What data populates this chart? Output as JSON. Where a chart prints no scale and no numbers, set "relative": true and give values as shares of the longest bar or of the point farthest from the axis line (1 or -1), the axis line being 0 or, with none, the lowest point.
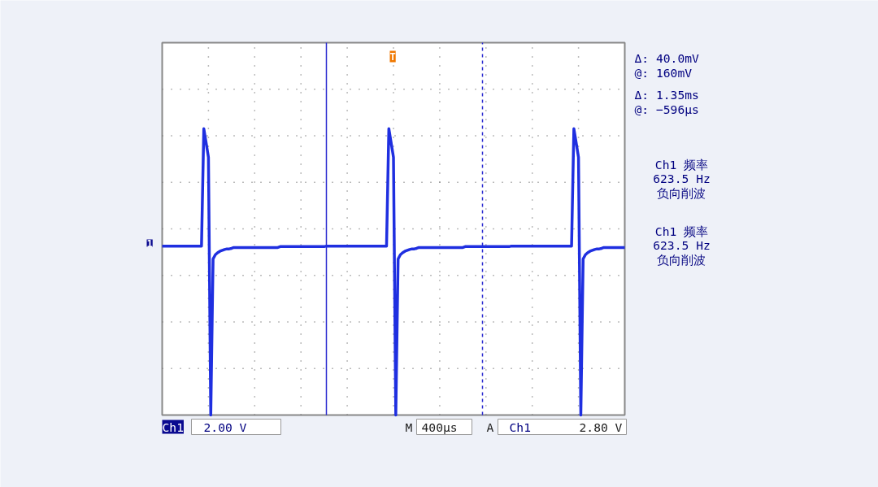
{
  "chart_data": {
    "type": "line",
    "relative": true,
    "categories": [
      null,
      null,
      null,
      null,
      null,
      null,
      null,
      null,
      null,
      null,
      null,
      null,
      null,
      null,
      null,
      null,
      null,
      null,
      null,
      null,
      null,
      null,
      null,
      null,
      null,
      null,
      null,
      null,
      null,
      null,
      null,
      null,
      null,
      null,
      null,
      null,
      null,
      null,
      null,
      null,
      null,
      null,
      null,
      null,
      null,
      null,
      null,
      null,
      null,
      null,
      null,
      null,
      null,
      null,
      null,
      null,
      null,
      null,
      null,
      null,
      null,
      null,
      null,
      null,
      null,
      null,
      null,
      null,
      null,
      null,
      null,
      null,
      null,
      null,
      null,
      null,
      null,
      null,
      null,
      null,
      null,
      null,
      null,
      null,
      null,
      null,
      null,
      null,
      null,
      null,
      null,
      null,
      null,
      null,
      null,
      null,
      null,
      null,
      null,
      null,
      null,
      null,
      null,
      null,
      null,
      null,
      null,
      null,
      null,
      null,
      null,
      null,
      null,
      null,
      null,
      null,
      null,
      null,
      null,
      null,
      null,
      null,
      null,
      null,
      null,
      null,
      null,
      null,
      null,
      null,
      null,
      null,
      null,
      null,
      null,
      null,
      null,
      null,
      null,
      null,
      null,
      null,
      null,
      null,
      null,
      null,
      null,
      null,
      null,
      null,
      null,
      null,
      null,
      null,
      null,
      null,
      null,
      null,
      null,
      null,
      null,
      null,
      null,
      null,
      null,
      null,
      null,
      null,
      null,
      null,
      null,
      null,
      null,
      null,
      null,
      null,
      null,
      null,
      null,
      null,
      null,
      null,
      null,
      null,
      null,
      null,
      null,
      null,
      null,
      null,
      null,
      null,
      null,
      null,
      null,
      null,
      null,
      null,
      null,
      null,
      null
    ],
    "series": [
      {
        "color": "#1f2fe0",
        "values": [
          0.59,
          0.59,
          0.59,
          0.59,
          0.59,
          0.59,
          0.59,
          0.59,
          0.59,
          0.59,
          0.59,
          0.59,
          0.59,
          0.59,
          0.59,
          0.59,
          0.59,
          0.59,
          1.0,
          0.95,
          0.9,
          0.0,
          0.545,
          0.56,
          0.567,
          0.572,
          0.575,
          0.578,
          0.58,
          0.58,
          0.582,
          0.585,
          0.585,
          0.585,
          0.585,
          0.585,
          0.585,
          0.585,
          0.585,
          0.585,
          0.585,
          0.585,
          0.585,
          0.585,
          0.585,
          0.585,
          0.585,
          0.585,
          0.585,
          0.585,
          0.585,
          0.588,
          0.588,
          0.588,
          0.588,
          0.588,
          0.588,
          0.588,
          0.588,
          0.588,
          0.588,
          0.588,
          0.588,
          0.588,
          0.588,
          0.588,
          0.588,
          0.588,
          0.588,
          0.588,
          0.588,
          0.59,
          0.59,
          0.59,
          0.59,
          0.59,
          0.59,
          0.59,
          0.59,
          0.59,
          0.59,
          0.59,
          0.59,
          0.59,
          0.59,
          0.59,
          0.59,
          0.59,
          0.59,
          0.59,
          0.59,
          0.59,
          0.59,
          0.59,
          0.59,
          0.59,
          0.59,
          0.59,
          1.0,
          0.95,
          0.9,
          0.0,
          0.545,
          0.56,
          0.567,
          0.572,
          0.575,
          0.578,
          0.58,
          0.58,
          0.582,
          0.585,
          0.585,
          0.585,
          0.585,
          0.585,
          0.585,
          0.585,
          0.585,
          0.585,
          0.585,
          0.585,
          0.585,
          0.585,
          0.585,
          0.585,
          0.585,
          0.585,
          0.585,
          0.585,
          0.585,
          0.588,
          0.588,
          0.588,
          0.588,
          0.588,
          0.588,
          0.588,
          0.588,
          0.588,
          0.588,
          0.588,
          0.588,
          0.588,
          0.588,
          0.588,
          0.588,
          0.588,
          0.588,
          0.588,
          0.588,
          0.59,
          0.59,
          0.59,
          0.59,
          0.59,
          0.59,
          0.59,
          0.59,
          0.59,
          0.59,
          0.59,
          0.59,
          0.59,
          0.59,
          0.59,
          0.59,
          0.59,
          0.59,
          0.59,
          0.59,
          0.59,
          0.59,
          0.59,
          0.59,
          0.59,
          0.59,
          0.59,
          1.0,
          0.95,
          0.9,
          0.0,
          0.545,
          0.56,
          0.567,
          0.572,
          0.575,
          0.578,
          0.58,
          0.58,
          0.582,
          0.585,
          0.585,
          0.585,
          0.585,
          0.585,
          0.585,
          0.585,
          0.585,
          0.585,
          0.585
        ]
      }
    ],
    "tick_labels": false,
    "grid": true,
    "marker": "none",
    "line_style": "solid",
    "annotations": [
      "Δ:  40.0mV",
      "@:   160mV",
      "Δ:   1.35ms",
      "@:  −596µs",
      "Ch1 频率\n623.5 Hz\n负向削波",
      "Ch1 频率\n623.5 Hz\n负向削波",
      "Ch1",
      "2.00 V",
      "M",
      "400µs",
      "A",
      "Ch1",
      "2.80 V",
      "1",
      "T"
    ]
  }
}
